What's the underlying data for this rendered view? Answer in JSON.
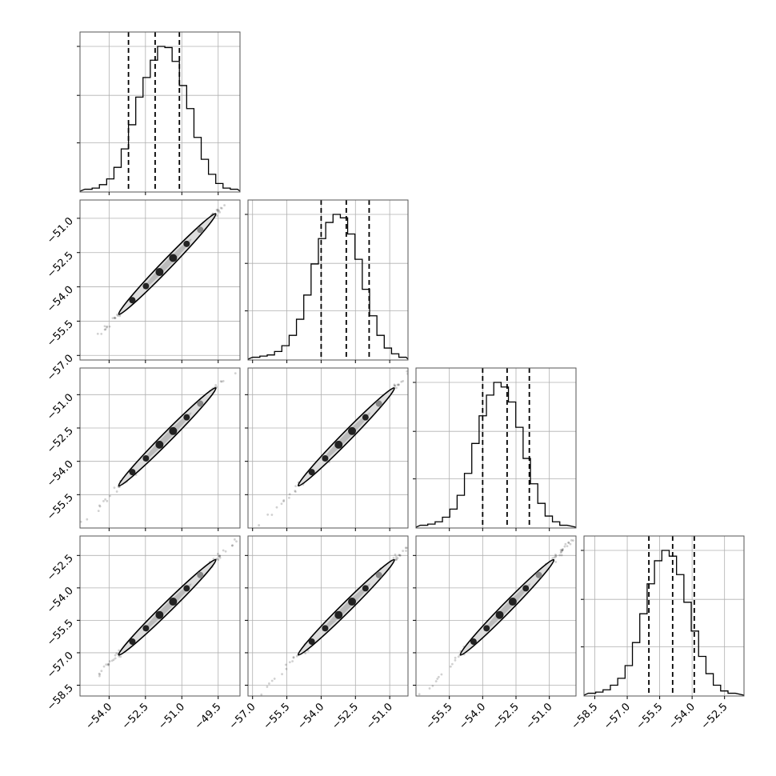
{
  "chart_data": {
    "type": "corner-plot",
    "parameters": 4,
    "grid": true,
    "colors": {
      "line": "#000000",
      "contour_fill": "#dddddd",
      "grid": "#b0b0b0",
      "frame": "#555555"
    },
    "axes": [
      {
        "range": [
          -55.2,
          -48.6
        ],
        "ticks": [
          "−54.0",
          "−52.5",
          "−51.0",
          "−49.5"
        ],
        "tick_values": [
          -54.0,
          -52.5,
          -51.0,
          -49.5
        ]
      },
      {
        "range": [
          -57.2,
          -50.2
        ],
        "ticks": [
          "−57.0",
          "−55.5",
          "−54.0",
          "−52.5",
          "−51.0"
        ],
        "tick_values": [
          -57.0,
          -55.5,
          -54.0,
          -52.5,
          -51.0
        ]
      },
      {
        "range": [
          -57.0,
          -49.8
        ],
        "ticks": [
          "−55.5",
          "−54.0",
          "−52.5",
          "−51.0"
        ],
        "tick_values": [
          -55.5,
          -54.0,
          -52.5,
          -51.0
        ]
      },
      {
        "range": [
          -59.0,
          -51.6
        ],
        "ticks": [
          "−58.5",
          "−57.0",
          "−55.5",
          "−54.0",
          "−52.5"
        ],
        "tick_values": [
          -58.5,
          -57.0,
          -55.5,
          -54.0,
          -52.5
        ]
      }
    ],
    "row_axis_ticks": [
      [],
      [
        "−51.0",
        "−52.5",
        "−54.0",
        "−55.5",
        "−57.0"
      ],
      [
        "−51.0",
        "−52.5",
        "−54.0",
        "−55.5"
      ],
      [
        "−52.5",
        "−54.0",
        "−55.5",
        "−57.0",
        "−58.5"
      ]
    ],
    "histograms": [
      {
        "param": 0,
        "bin_start": -55.0,
        "bin_width": 0.3,
        "counts": [
          1,
          2,
          5,
          10,
          20,
          36,
          57,
          81,
          98,
          113,
          125,
          124,
          112,
          91,
          71,
          46,
          27,
          14,
          6,
          2,
          1
        ],
        "quantiles": [
          -53.2,
          -52.1,
          -51.1
        ]
      },
      {
        "param": 1,
        "bin_start": -57.0,
        "bin_width": 0.32,
        "counts": [
          1,
          2,
          3,
          6,
          11,
          20,
          34,
          55,
          82,
          104,
          118,
          125,
          122,
          108,
          86,
          60,
          37,
          20,
          9,
          4,
          1
        ],
        "quantiles": [
          -54.0,
          -52.9,
          -51.9
        ]
      },
      {
        "param": 2,
        "bin_start": -56.8,
        "bin_width": 0.33,
        "counts": [
          1,
          2,
          4,
          8,
          15,
          27,
          46,
          72,
          96,
          114,
          125,
          121,
          108,
          86,
          59,
          37,
          20,
          9,
          4,
          1
        ],
        "quantiles": [
          -54.0,
          -52.9,
          -51.9
        ]
      },
      {
        "param": 3,
        "bin_start": -58.8,
        "bin_width": 0.34,
        "counts": [
          1,
          2,
          4,
          8,
          14,
          25,
          45,
          70,
          96,
          116,
          125,
          120,
          104,
          80,
          55,
          33,
          18,
          8,
          3,
          1
        ],
        "quantiles": [
          -56.0,
          -54.9,
          -53.9
        ]
      }
    ],
    "scatter_2d": [
      {
        "row": 1,
        "col": 0,
        "x_center": -51.6,
        "y_center": -53.0,
        "x_sd": 1.0,
        "y_sd": 1.1,
        "correlation": 0.998
      },
      {
        "row": 2,
        "col": 0,
        "x_center": -51.6,
        "y_center": -52.9,
        "x_sd": 1.0,
        "y_sd": 1.1,
        "correlation": 0.998
      },
      {
        "row": 2,
        "col": 1,
        "x_center": -52.9,
        "y_center": -52.9,
        "x_sd": 1.05,
        "y_sd": 1.1,
        "correlation": 0.998
      },
      {
        "row": 3,
        "col": 0,
        "x_center": -51.6,
        "y_center": -54.9,
        "x_sd": 1.0,
        "y_sd": 1.1,
        "correlation": 0.998
      },
      {
        "row": 3,
        "col": 1,
        "x_center": -52.9,
        "y_center": -54.9,
        "x_sd": 1.05,
        "y_sd": 1.1,
        "correlation": 0.998
      },
      {
        "row": 3,
        "col": 2,
        "x_center": -52.9,
        "y_center": -54.9,
        "x_sd": 1.05,
        "y_sd": 1.1,
        "correlation": 0.998
      }
    ]
  }
}
